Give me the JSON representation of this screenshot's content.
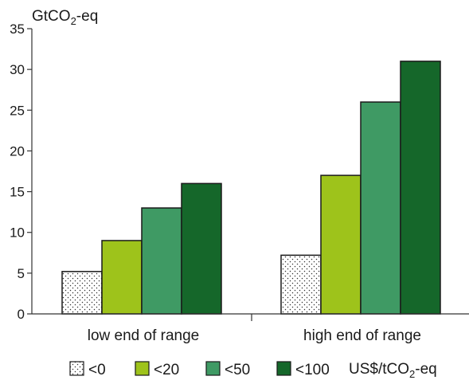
{
  "chart_data": {
    "type": "bar",
    "unit_label": {
      "base": "GtCO",
      "sub": "2",
      "suffix": "-eq"
    },
    "categories": [
      "low end of range",
      "high end of range"
    ],
    "ylim": [
      0,
      35
    ],
    "yticks": [
      0,
      5,
      10,
      15,
      20,
      25,
      30,
      35
    ],
    "series": [
      {
        "name": "<0",
        "values": [
          5.2,
          7.2
        ],
        "color": "#ffffff",
        "pattern": "dots"
      },
      {
        "name": "<20",
        "values": [
          9,
          17
        ],
        "color": "#9ec31b"
      },
      {
        "name": "<50",
        "values": [
          13,
          26
        ],
        "color": "#3f9a64"
      },
      {
        "name": "<100",
        "values": [
          16,
          31
        ],
        "color": "#15672a"
      }
    ],
    "legend_unit": {
      "base": "US$/tCO",
      "sub": "2",
      "suffix": "-eq"
    },
    "legend_position": "bottom",
    "grid": false
  }
}
